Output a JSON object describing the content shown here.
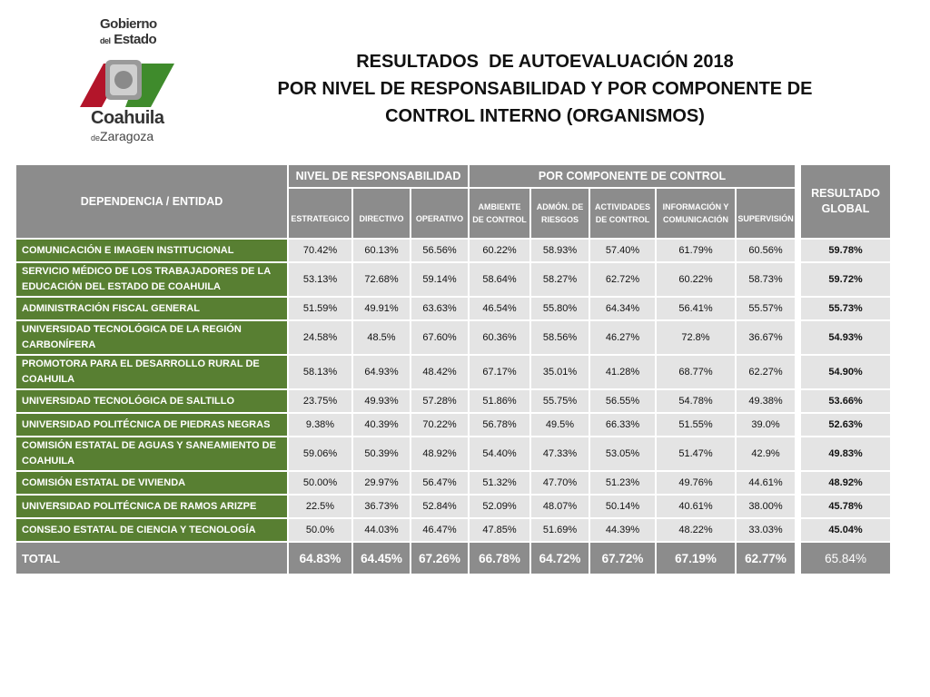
{
  "logo": {
    "line1": "Gobierno",
    "line2_small": "del",
    "line2": "Estado",
    "line3": "Coahuila",
    "line4_small": "de",
    "line4": "Zaragoza",
    "colors": {
      "red": "#b3152a",
      "green": "#3f8b2c",
      "seal": "#8a8a8a"
    }
  },
  "title": {
    "line1": "RESULTADOS  DE AUTOEVALUACIÓN 2018",
    "line2": "POR NIVEL DE RESPONSABILIDAD Y POR COMPONENTE DE",
    "line3": "CONTROL INTERNO (ORGANISMOS)"
  },
  "table": {
    "header_entity": "DEPENDENCIA / ENTIDAD",
    "header_group1": "NIVEL DE RESPONSABILIDAD",
    "header_group2": "POR COMPONENTE DE CONTROL",
    "header_result_line1": "RESULTADO",
    "header_result_line2": "GLOBAL",
    "subheaders": [
      {
        "l1": "ESTRATEGICO",
        "l2": ""
      },
      {
        "l1": "DIRECTIVO",
        "l2": ""
      },
      {
        "l1": "OPERATIVO",
        "l2": ""
      },
      {
        "l1": "AMBIENTE",
        "l2": "DE CONTROL"
      },
      {
        "l1": "ADMÓN. DE",
        "l2": "RIESGOS"
      },
      {
        "l1": "ACTIVIDADES",
        "l2": "DE CONTROL"
      },
      {
        "l1": "INFORMACIÓN Y",
        "l2": "COMUNICACIÓN"
      },
      {
        "l1": "SUPERVISIÓN",
        "l2": ""
      }
    ],
    "rows": [
      {
        "entity": "COMUNICACIÓN E IMAGEN INSTITUCIONAL",
        "values": [
          "70.42%",
          "60.13%",
          "56.56%",
          "60.22%",
          "58.93%",
          "57.40%",
          "61.79%",
          "60.56%"
        ],
        "global": "59.78%"
      },
      {
        "entity": "SERVICIO MÉDICO DE LOS TRABAJADORES DE LA EDUCACIÓN DEL ESTADO DE COAHUILA",
        "values": [
          "53.13%",
          "72.68%",
          "59.14%",
          "58.64%",
          "58.27%",
          "62.72%",
          "60.22%",
          "58.73%"
        ],
        "global": "59.72%"
      },
      {
        "entity": "ADMINISTRACIÓN FISCAL GENERAL",
        "values": [
          "51.59%",
          "49.91%",
          "63.63%",
          "46.54%",
          "55.80%",
          "64.34%",
          "56.41%",
          "55.57%"
        ],
        "global": "55.73%"
      },
      {
        "entity": "UNIVERSIDAD TECNOLÓGICA DE LA REGIÓN CARBONÍFERA",
        "values": [
          "24.58%",
          "48.5%",
          "67.60%",
          "60.36%",
          "58.56%",
          "46.27%",
          "72.8%",
          "36.67%"
        ],
        "global": "54.93%"
      },
      {
        "entity": "PROMOTORA PARA EL DESARROLLO RURAL DE COAHUILA",
        "values": [
          "58.13%",
          "64.93%",
          "48.42%",
          "67.17%",
          "35.01%",
          "41.28%",
          "68.77%",
          "62.27%"
        ],
        "global": "54.90%"
      },
      {
        "entity": "UNIVERSIDAD TECNOLÓGICA DE SALTILLO",
        "values": [
          "23.75%",
          "49.93%",
          "57.28%",
          "51.86%",
          "55.75%",
          "56.55%",
          "54.78%",
          "49.38%"
        ],
        "global": "53.66%"
      },
      {
        "entity": "UNIVERSIDAD POLITÉCNICA DE PIEDRAS NEGRAS",
        "values": [
          "9.38%",
          "40.39%",
          "70.22%",
          "56.78%",
          "49.5%",
          "66.33%",
          "51.55%",
          "39.0%"
        ],
        "global": "52.63%"
      },
      {
        "entity": "COMISIÓN ESTATAL DE AGUAS Y SANEAMIENTO DE COAHUILA",
        "values": [
          "59.06%",
          "50.39%",
          "48.92%",
          "54.40%",
          "47.33%",
          "53.05%",
          "51.47%",
          "42.9%"
        ],
        "global": "49.83%"
      },
      {
        "entity": "COMISIÓN ESTATAL DE VIVIENDA",
        "values": [
          "50.00%",
          "29.97%",
          "56.47%",
          "51.32%",
          "47.70%",
          "51.23%",
          "49.76%",
          "44.61%"
        ],
        "global": "48.92%"
      },
      {
        "entity": "UNIVERSIDAD POLITÉCNICA DE RAMOS ARIZPE",
        "values": [
          "22.5%",
          "36.73%",
          "52.84%",
          "52.09%",
          "48.07%",
          "50.14%",
          "40.61%",
          "38.00%"
        ],
        "global": "45.78%"
      },
      {
        "entity": "CONSEJO ESTATAL DE CIENCIA Y TECNOLOGÍA",
        "values": [
          "50.0%",
          "44.03%",
          "46.47%",
          "47.85%",
          "51.69%",
          "44.39%",
          "48.22%",
          "33.03%"
        ],
        "global": "45.04%"
      }
    ],
    "total": {
      "label": "TOTAL",
      "values": [
        "64.83%",
        "64.45%",
        "67.26%",
        "66.78%",
        "64.72%",
        "67.72%",
        "67.19%",
        "62.77%"
      ],
      "global": "65.84%"
    }
  }
}
